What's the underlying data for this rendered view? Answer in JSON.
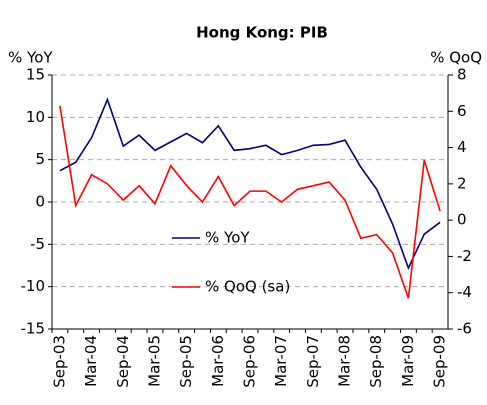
{
  "chart_data": {
    "type": "line",
    "title": "Hong Kong: PIB",
    "y_label": "% YoY",
    "y2_label": "% QoQ",
    "categories": [
      "Sep-03",
      null,
      "Mar-04",
      null,
      "Sep-04",
      null,
      "Mar-05",
      null,
      "Sep-05",
      null,
      "Mar-06",
      null,
      "Sep-06",
      null,
      "Mar-07",
      null,
      "Sep-07",
      null,
      "Mar-08",
      null,
      "Sep-08",
      null,
      "Mar-09",
      null,
      "Sep-09"
    ],
    "series": [
      {
        "name": "% YoY",
        "color": "#000080",
        "values": [
          3.7,
          4.7,
          7.6,
          12.1,
          6.6,
          7.9,
          6.1,
          7.1,
          8.1,
          7.0,
          9.0,
          6.1,
          6.3,
          6.7,
          5.6,
          6.1,
          6.7,
          6.8,
          7.3,
          4.1,
          1.5,
          -2.6,
          -7.8,
          -3.8,
          -2.4
        ]
      },
      {
        "name": "% QoQ (sa)",
        "color": "#ff0000",
        "axis": "y2",
        "values": [
          6.3,
          0.8,
          2.5,
          2.0,
          1.1,
          1.9,
          0.9,
          3.0,
          1.9,
          1.0,
          2.4,
          0.8,
          1.6,
          1.6,
          1.0,
          1.7,
          1.9,
          2.1,
          1.1,
          -1.0,
          -0.8,
          -1.8,
          -4.3,
          3.3,
          0.5
        ]
      }
    ],
    "ylim": [
      -15,
      15
    ],
    "yticks": [
      -15,
      -10,
      -5,
      0,
      5,
      10,
      15
    ],
    "y2lim": [
      -6,
      8
    ],
    "y2ticks": [
      -6,
      -4,
      -2,
      0,
      2,
      4,
      6,
      8
    ],
    "grid": true
  }
}
